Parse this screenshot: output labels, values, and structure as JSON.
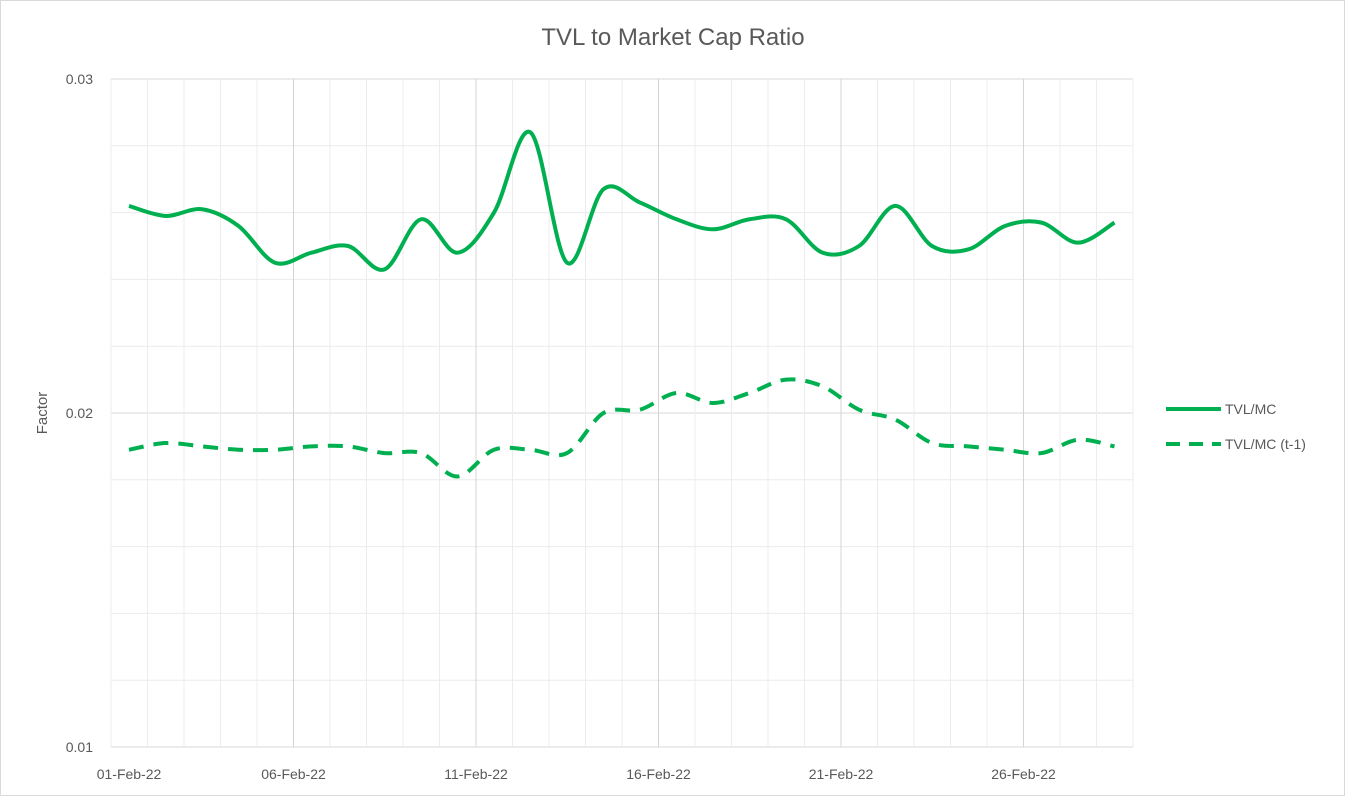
{
  "chart_data": {
    "type": "line",
    "title": "TVL to Market Cap Ratio",
    "xlabel": "",
    "ylabel": "Factor",
    "ylim": [
      0.01,
      0.03
    ],
    "yticks": [
      "0.01",
      "0.02",
      "0.03"
    ],
    "x": [
      "01-Feb-22",
      "02-Feb-22",
      "03-Feb-22",
      "04-Feb-22",
      "05-Feb-22",
      "06-Feb-22",
      "07-Feb-22",
      "08-Feb-22",
      "09-Feb-22",
      "10-Feb-22",
      "11-Feb-22",
      "12-Feb-22",
      "13-Feb-22",
      "14-Feb-22",
      "15-Feb-22",
      "16-Feb-22",
      "17-Feb-22",
      "18-Feb-22",
      "19-Feb-22",
      "20-Feb-22",
      "21-Feb-22",
      "22-Feb-22",
      "23-Feb-22",
      "24-Feb-22",
      "25-Feb-22",
      "26-Feb-22",
      "27-Feb-22",
      "28-Feb-22"
    ],
    "xtick_labels": [
      "01-Feb-22",
      "06-Feb-22",
      "11-Feb-22",
      "16-Feb-22",
      "21-Feb-22",
      "26-Feb-22"
    ],
    "grid": true,
    "legend_position": "right",
    "series": [
      {
        "name": "TVL/MC",
        "style": "solid",
        "color": "#00B050",
        "values": [
          0.0262,
          0.0259,
          0.0261,
          0.0256,
          0.0245,
          0.0248,
          0.025,
          0.0243,
          0.0258,
          0.0248,
          0.026,
          0.0284,
          0.0245,
          0.0267,
          0.0263,
          0.0258,
          0.0255,
          0.0258,
          0.0258,
          0.0248,
          0.025,
          0.0262,
          0.025,
          0.0249,
          0.0256,
          0.0257,
          0.0251,
          0.0257
        ]
      },
      {
        "name": "TVL/MC (t-1)",
        "style": "dashed",
        "color": "#00B050",
        "values": [
          0.0189,
          0.0191,
          0.019,
          0.0189,
          0.0189,
          0.019,
          0.019,
          0.0188,
          0.0188,
          0.0181,
          0.0189,
          0.0189,
          0.0188,
          0.02,
          0.0201,
          0.0206,
          0.0203,
          0.0206,
          0.021,
          0.0208,
          0.0201,
          0.0198,
          0.0191,
          0.019,
          0.0189,
          0.0188,
          0.0192,
          0.019
        ]
      }
    ]
  }
}
